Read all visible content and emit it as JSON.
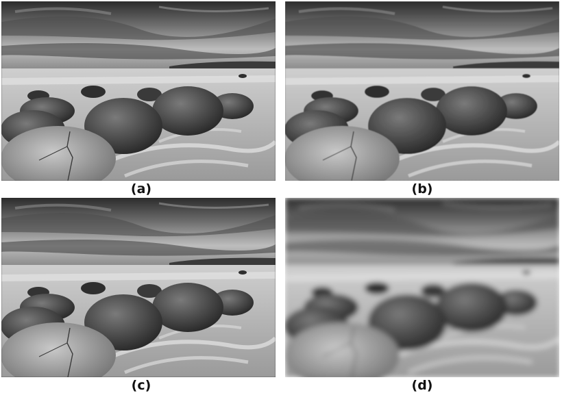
{
  "figure": {
    "description_colors": {
      "sky_dark": "#2c2c2c",
      "sky_light": "#bdbdbd",
      "sand": "#cfcfcf",
      "boulder": "#4a4a4a"
    },
    "panels": [
      {
        "id": "a",
        "caption": "(a)",
        "blur": 0
      },
      {
        "id": "b",
        "caption": "(b)",
        "blur": 0.4
      },
      {
        "id": "c",
        "caption": "(c)",
        "blur": 0
      },
      {
        "id": "d",
        "caption": "(d)",
        "blur": 4
      }
    ]
  }
}
